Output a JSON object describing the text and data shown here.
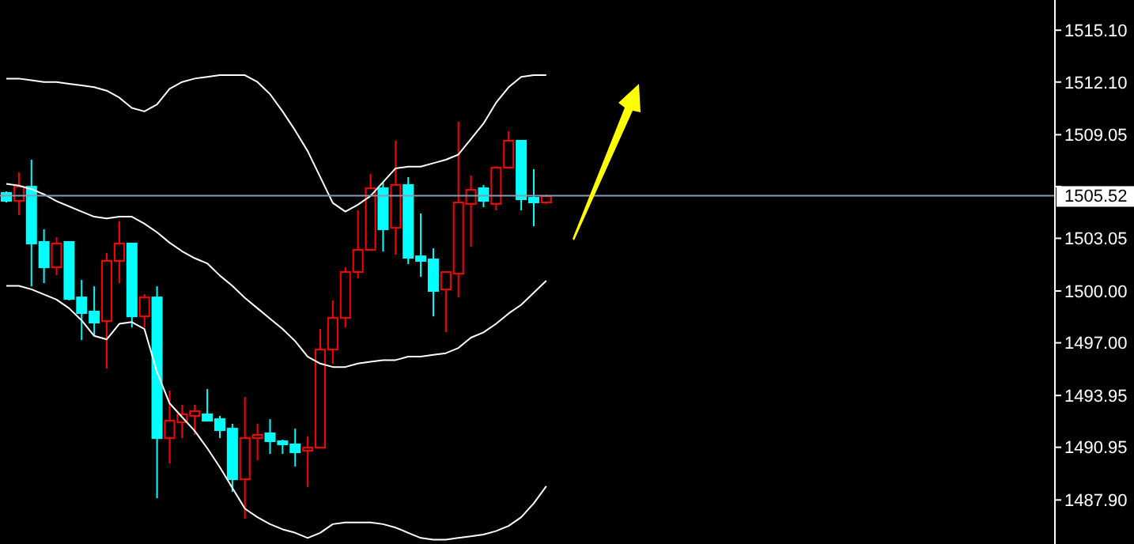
{
  "chart_data": {
    "type": "candlestick",
    "categories": [
      null,
      null,
      null,
      null,
      null,
      null,
      null,
      null,
      null,
      null,
      null,
      null,
      null,
      null,
      null,
      null,
      null,
      null,
      null,
      null,
      null,
      null,
      null,
      null,
      null,
      null,
      null,
      null,
      null,
      null,
      null,
      null,
      null,
      null,
      null,
      null,
      null,
      null,
      null,
      null,
      null,
      null,
      null,
      null,
      null,
      null,
      null,
      null,
      null,
      null,
      null,
      null,
      null,
      null,
      null,
      null,
      null,
      null,
      null,
      null,
      null,
      null,
      null,
      null,
      null,
      null,
      null,
      null,
      null,
      null,
      null,
      null,
      null,
      null,
      null,
      null,
      null,
      null,
      null,
      null,
      null,
      null,
      null,
      null
    ],
    "ohlc": [
      [
        1505.68,
        1505.77,
        1505.13,
        1505.22
      ],
      [
        1505.22,
        1506.87,
        1504.4,
        1506.04
      ],
      [
        1506.04,
        1507.6,
        1500.27,
        1502.75
      ],
      [
        1502.84,
        1503.57,
        1500.46,
        1501.37
      ],
      [
        1501.37,
        1503.11,
        1500.92,
        1502.75
      ],
      [
        1502.84,
        1502.84,
        1499.45,
        1499.54
      ],
      [
        1499.63,
        1500.64,
        1497.16,
        1498.72
      ],
      [
        1498.81,
        1500.27,
        1497.44,
        1498.17
      ],
      [
        1498.26,
        1502.2,
        1495.51,
        1501.74
      ],
      [
        1501.74,
        1504.03,
        1500.46,
        1502.75
      ],
      [
        1502.75,
        1502.75,
        1497.89,
        1498.53
      ],
      [
        1498.53,
        1499.82,
        1497.89,
        1499.63
      ],
      [
        1499.63,
        1500.27,
        1488.0,
        1491.48
      ],
      [
        1491.48,
        1494.23,
        1490.02,
        1492.49
      ],
      [
        1492.4,
        1493.41,
        1491.48,
        1492.86
      ],
      [
        1492.77,
        1493.41,
        1491.67,
        1493.04
      ],
      [
        1492.86,
        1494.32,
        1492.49,
        1492.49
      ],
      [
        1492.58,
        1492.77,
        1491.48,
        1491.94
      ],
      [
        1492.03,
        1492.31,
        1488.37,
        1489.1
      ],
      [
        1489.1,
        1493.86,
        1486.81,
        1491.48
      ],
      [
        1491.48,
        1492.31,
        1490.2,
        1491.67
      ],
      [
        1491.76,
        1492.58,
        1490.57,
        1491.3
      ],
      [
        1491.3,
        1491.39,
        1490.57,
        1491.12
      ],
      [
        1491.12,
        1492.03,
        1489.84,
        1490.66
      ],
      [
        1490.75,
        1491.58,
        1488.64,
        1490.93
      ],
      [
        1490.93,
        1497.8,
        1490.93,
        1496.61
      ],
      [
        1496.61,
        1499.45,
        1495.79,
        1498.44
      ],
      [
        1498.44,
        1501.37,
        1497.89,
        1501.1
      ],
      [
        1501.1,
        1504.67,
        1500.73,
        1502.38
      ],
      [
        1502.38,
        1506.78,
        1502.38,
        1505.95
      ],
      [
        1505.95,
        1506.32,
        1502.29,
        1503.57
      ],
      [
        1503.66,
        1508.7,
        1502.11,
        1506.14
      ],
      [
        1506.14,
        1506.59,
        1501.56,
        1501.92
      ],
      [
        1502.01,
        1504.49,
        1500.82,
        1501.74
      ],
      [
        1501.83,
        1502.47,
        1498.53,
        1500.0
      ],
      [
        1500.09,
        1501.1,
        1497.62,
        1501.1
      ],
      [
        1501.0,
        1509.8,
        1499.63,
        1505.13
      ],
      [
        1505.04,
        1506.68,
        1502.56,
        1505.86
      ],
      [
        1505.95,
        1506.14,
        1504.85,
        1505.22
      ],
      [
        1505.04,
        1507.23,
        1504.67,
        1507.14
      ],
      [
        1507.14,
        1509.25,
        1507.14,
        1508.7
      ],
      [
        1508.7,
        1508.7,
        1504.67,
        1505.31
      ],
      [
        1505.4,
        1507.05,
        1503.75,
        1505.13
      ],
      [
        1505.13,
        1505.59,
        1505.04,
        1505.49
      ],
      null,
      null,
      null,
      null,
      null,
      null,
      null,
      null,
      null,
      null,
      null,
      null,
      null,
      null,
      null,
      null,
      null,
      null,
      null,
      null,
      null,
      null,
      null,
      null,
      null,
      null,
      null,
      null,
      null,
      null,
      null,
      null,
      null,
      null,
      null,
      null,
      null,
      null,
      null,
      null
    ],
    "colors": [
      "#00ffff",
      "#ff0000",
      "#00ffff",
      "#00ffff",
      "#ff0000",
      "#00ffff",
      "#00ffff",
      "#00ffff",
      "#ff0000",
      "#ff0000",
      "#00ffff",
      "#ff0000",
      "#00ffff",
      "#ff0000",
      "#ff0000",
      "#ff0000",
      "#00ffff",
      "#00ffff",
      "#00ffff",
      "#ff0000",
      "#ff0000",
      "#00ffff",
      "#00ffff",
      "#00ffff",
      "#ff0000",
      "#ff0000",
      "#ff0000",
      "#ff0000",
      "#ff0000",
      "#ff0000",
      "#00ffff",
      "#ff0000",
      "#00ffff",
      "#00ffff",
      "#00ffff",
      "#ff0000",
      "#ff0000",
      "#ff0000",
      "#00ffff",
      "#ff0000",
      "#ff0000",
      "#00ffff",
      "#00ffff",
      "#ff0000",
      null,
      null,
      null,
      null,
      null,
      null,
      null,
      null,
      null,
      null,
      null,
      null,
      null,
      null,
      null,
      null,
      null,
      null,
      null,
      null,
      null,
      null,
      null,
      null,
      null,
      null,
      null,
      null,
      null,
      null,
      null,
      null,
      null,
      null,
      null,
      null,
      null,
      null,
      null,
      null
    ],
    "series": [
      {
        "type": "line",
        "color": "#ffffff",
        "values": [
          1512.3,
          1512.3,
          1512.2,
          1512.1,
          1512.1,
          1512.0,
          1511.9,
          1511.8,
          1511.6,
          1511.2,
          1510.6,
          1510.4,
          1510.8,
          1511.7,
          1512.1,
          1512.3,
          1512.4,
          1512.5,
          1512.5,
          1512.5,
          1512.1,
          1511.4,
          1510.4,
          1509.3,
          1508.1,
          1506.6,
          1505.1,
          1504.6,
          1505.0,
          1505.5,
          1506.3,
          1507.1,
          1507.2,
          1507.2,
          1507.4,
          1507.6,
          1507.9,
          1508.8,
          1509.7,
          1510.9,
          1511.8,
          1512.4,
          1512.5,
          1512.5,
          null,
          null,
          null,
          null,
          null,
          null,
          null,
          null,
          null,
          null,
          null,
          null,
          null,
          null,
          null,
          null,
          null,
          null,
          null,
          null,
          null,
          null,
          null,
          null,
          null,
          null,
          null,
          null,
          null,
          null,
          null,
          null,
          null,
          null,
          null,
          null,
          null,
          null,
          null,
          null
        ]
      },
      {
        "type": "line",
        "color": "#ffffff",
        "values": [
          1506.2,
          1506.1,
          1505.9,
          1505.6,
          1505.2,
          1504.9,
          1504.6,
          1504.3,
          1504.2,
          1504.3,
          1504.3,
          1503.9,
          1503.4,
          1502.8,
          1502.3,
          1501.9,
          1501.6,
          1500.9,
          1500.3,
          1499.6,
          1499.0,
          1498.4,
          1497.8,
          1497.1,
          1496.2,
          1495.8,
          1495.6,
          1495.6,
          1495.8,
          1495.9,
          1496.0,
          1496.0,
          1496.2,
          1496.2,
          1496.3,
          1496.4,
          1496.7,
          1497.3,
          1497.6,
          1498.1,
          1498.7,
          1499.2,
          1499.9,
          1500.6,
          null,
          null,
          null,
          null,
          null,
          null,
          null,
          null,
          null,
          null,
          null,
          null,
          null,
          null,
          null,
          null,
          null,
          null,
          null,
          null,
          null,
          null,
          null,
          null,
          null,
          null,
          null,
          null,
          null,
          null,
          null,
          null,
          null,
          null,
          null,
          null,
          null,
          null,
          null,
          null
        ]
      },
      {
        "type": "line",
        "color": "#ffffff",
        "values": [
          1500.3,
          1500.3,
          1500.1,
          1499.8,
          1499.5,
          1499.0,
          1498.3,
          1497.4,
          1497.2,
          1498.1,
          1498.2,
          1497.8,
          1495.3,
          1493.5,
          1492.7,
          1491.9,
          1490.9,
          1489.8,
          1488.6,
          1487.4,
          1486.9,
          1486.5,
          1486.2,
          1486.0,
          1485.7,
          1486.0,
          1486.5,
          1486.6,
          1486.6,
          1486.6,
          1486.5,
          1486.3,
          1486.0,
          1485.7,
          1485.6,
          1485.6,
          1485.7,
          1485.8,
          1485.9,
          1486.1,
          1486.4,
          1486.9,
          1487.7,
          1488.7,
          null,
          null,
          null,
          null,
          null,
          null,
          null,
          null,
          null,
          null,
          null,
          null,
          null,
          null,
          null,
          null,
          null,
          null,
          null,
          null,
          null,
          null,
          null,
          null,
          null,
          null,
          null,
          null,
          null,
          null,
          null,
          null,
          null,
          null,
          null,
          null,
          null,
          null,
          null,
          null
        ]
      }
    ],
    "ylim": [
      1485.35,
      1516.85
    ],
    "yticks": [
      {
        "value": 1487.9,
        "label": "1487.90"
      },
      {
        "value": 1490.95,
        "label": "1490.95"
      },
      {
        "value": 1493.95,
        "label": "1493.95"
      },
      {
        "value": 1497.0,
        "label": "1497.00"
      },
      {
        "value": 1500.0,
        "label": "1500.00"
      },
      {
        "value": 1503.05,
        "label": "1503.05"
      },
      {
        "value": 1506.05,
        "label": null
      },
      {
        "value": 1509.05,
        "label": "1509.05"
      },
      {
        "value": 1512.1,
        "label": "1512.10"
      },
      {
        "value": 1515.1,
        "label": "1515.10"
      }
    ],
    "ref_lines": [
      {
        "axis": "y",
        "value": 1505.52,
        "label": "1505.52",
        "color": "#8a9ab0"
      }
    ],
    "tick_labels": "y",
    "grid": false
  }
}
